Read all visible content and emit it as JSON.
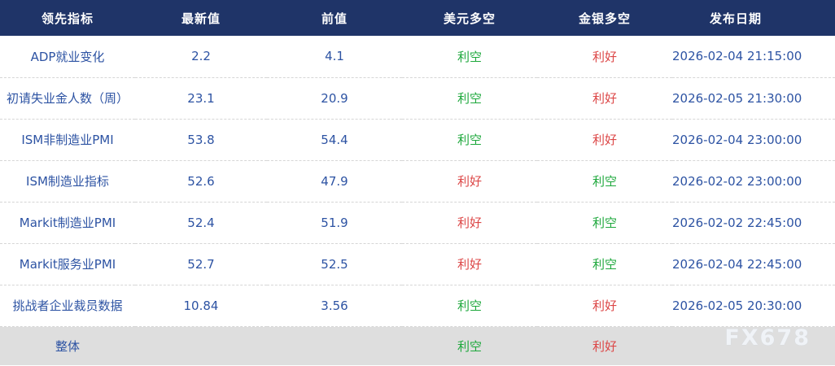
{
  "watermark": {
    "text": "FX678"
  },
  "sentiment_colors": {
    "利空": "#1ea83c",
    "利好": "#dc4646"
  },
  "colors": {
    "header_bg": "#1f3468",
    "header_text": "#ffffff",
    "body_text": "#2d53a3",
    "summary_bg": "#dedede",
    "row_divider": "#d6d6d6",
    "bearish_green": "#1ea83c",
    "bullish_red": "#dc4646"
  },
  "chart_data": {
    "type": "table",
    "title": "",
    "columns": [
      "领先指标",
      "最新值",
      "前值",
      "美元多空",
      "金银多空",
      "发布日期"
    ],
    "rows": [
      [
        "ADP就业变化",
        "2.2",
        "4.1",
        "利空",
        "利好",
        "2026-02-04 21:15:00"
      ],
      [
        "初请失业金人数（周）",
        "23.1",
        "20.9",
        "利空",
        "利好",
        "2026-02-05 21:30:00"
      ],
      [
        "ISM非制造业PMI",
        "53.8",
        "54.4",
        "利空",
        "利好",
        "2026-02-04 23:00:00"
      ],
      [
        "ISM制造业指标",
        "52.6",
        "47.9",
        "利好",
        "利空",
        "2026-02-02 23:00:00"
      ],
      [
        "Markit制造业PMI",
        "52.4",
        "51.9",
        "利好",
        "利空",
        "2026-02-02 22:45:00"
      ],
      [
        "Markit服务业PMI",
        "52.7",
        "52.5",
        "利好",
        "利空",
        "2026-02-04 22:45:00"
      ],
      [
        "挑战者企业裁员数据",
        "10.84",
        "3.56",
        "利空",
        "利好",
        "2026-02-05 20:30:00"
      ],
      [
        "整体",
        "",
        "",
        "利空",
        "利好",
        ""
      ]
    ],
    "summary_row_index": 7,
    "sentiment_column_indexes": [
      3,
      4
    ],
    "layout": {
      "grid": "dashed-row-dividers",
      "header_style": "dark-navy",
      "summary_style": "gray-band"
    }
  }
}
